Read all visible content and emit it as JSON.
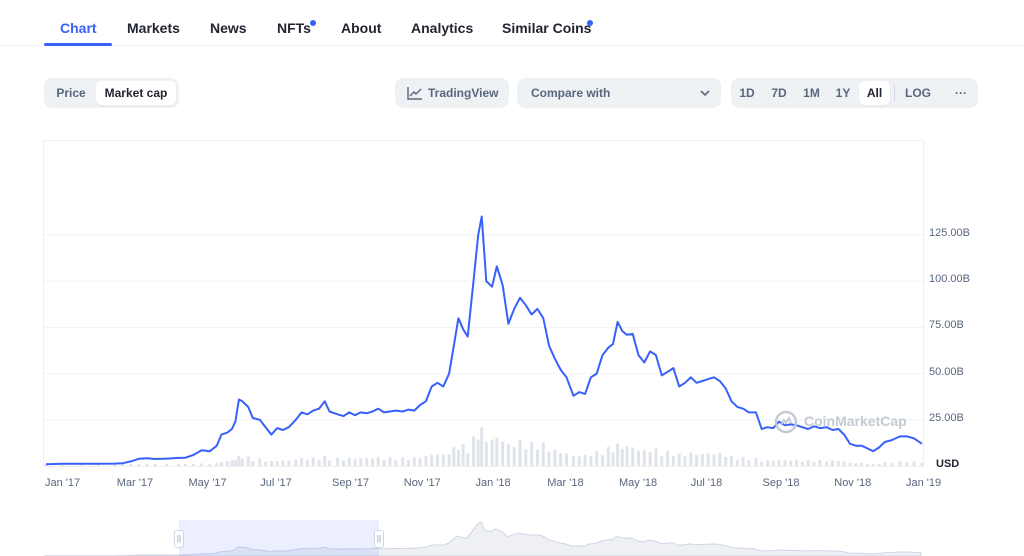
{
  "tabs": [
    {
      "label": "Chart",
      "active": true,
      "dot": false
    },
    {
      "label": "Markets",
      "active": false,
      "dot": false
    },
    {
      "label": "News",
      "active": false,
      "dot": false
    },
    {
      "label": "NFTs",
      "active": false,
      "dot": true
    },
    {
      "label": "About",
      "active": false,
      "dot": false
    },
    {
      "label": "Analytics",
      "active": false,
      "dot": false
    },
    {
      "label": "Similar Coins",
      "active": false,
      "dot": true
    }
  ],
  "controls": {
    "metric_toggle": [
      {
        "label": "Price",
        "selected": false
      },
      {
        "label": "Market cap",
        "selected": true
      }
    ],
    "tradingview_label": "TradingView",
    "compare_label": "Compare with",
    "ranges": [
      {
        "label": "1D",
        "selected": false
      },
      {
        "label": "7D",
        "selected": false
      },
      {
        "label": "1M",
        "selected": false
      },
      {
        "label": "1Y",
        "selected": false
      },
      {
        "label": "All",
        "selected": true
      }
    ],
    "log_label": "LOG",
    "more_label": "···"
  },
  "watermark": "CoinMarketCap",
  "currency": "USD",
  "colors": {
    "accent": "#3861fb",
    "line": "#3861fb",
    "volume": "#dfe3ea"
  },
  "chart_data": {
    "type": "line",
    "y_unit": "USD",
    "ylim": [
      0,
      150000000000
    ],
    "y_ticks": [
      {
        "value": 25000000000,
        "label": "25.00B"
      },
      {
        "value": 50000000000,
        "label": "50.00B"
      },
      {
        "value": 75000000000,
        "label": "75.00B"
      },
      {
        "value": 100000000000,
        "label": "100.00B"
      },
      {
        "value": 125000000000,
        "label": "125.00B"
      }
    ],
    "x_ticks": [
      "Jan '17",
      "Mar '17",
      "May '17",
      "Jul '17",
      "Sep '17",
      "Nov '17",
      "Jan '18",
      "Mar '18",
      "May '18",
      "Jul '18",
      "Sep '18",
      "Nov '18",
      "Jan '19"
    ],
    "x_range": [
      "2017-01-01",
      "2019-01-25"
    ],
    "series": [
      {
        "points": [
          [
            "2017-01-01",
            1.0
          ],
          [
            "2017-01-15",
            1.2
          ],
          [
            "2017-02-01",
            1.2
          ],
          [
            "2017-02-15",
            1.2
          ],
          [
            "2017-03-01",
            1.3
          ],
          [
            "2017-03-08",
            1.5
          ],
          [
            "2017-03-15",
            2.5
          ],
          [
            "2017-03-22",
            3.9
          ],
          [
            "2017-03-29",
            4.2
          ],
          [
            "2017-04-05",
            3.8
          ],
          [
            "2017-04-15",
            4.0
          ],
          [
            "2017-04-25",
            4.4
          ],
          [
            "2017-05-01",
            4.5
          ],
          [
            "2017-05-08",
            6.0
          ],
          [
            "2017-05-15",
            8.5
          ],
          [
            "2017-05-22",
            8.0
          ],
          [
            "2017-05-28",
            11.0
          ],
          [
            "2017-06-01",
            17.0
          ],
          [
            "2017-06-06",
            18.0
          ],
          [
            "2017-06-10",
            20.0
          ],
          [
            "2017-06-13",
            24.0
          ],
          [
            "2017-06-16",
            36.0
          ],
          [
            "2017-06-19",
            35.0
          ],
          [
            "2017-06-24",
            32.0
          ],
          [
            "2017-06-28",
            26.0
          ],
          [
            "2017-07-04",
            25.0
          ],
          [
            "2017-07-09",
            21.0
          ],
          [
            "2017-07-14",
            17.0
          ],
          [
            "2017-07-19",
            20.5
          ],
          [
            "2017-07-24",
            19.5
          ],
          [
            "2017-07-29",
            21.0
          ],
          [
            "2017-08-04",
            25.0
          ],
          [
            "2017-08-09",
            29.0
          ],
          [
            "2017-08-14",
            28.0
          ],
          [
            "2017-08-19",
            30.0
          ],
          [
            "2017-08-24",
            31.0
          ],
          [
            "2017-08-29",
            35.0
          ],
          [
            "2017-09-02",
            29.5
          ],
          [
            "2017-09-09",
            28.0
          ],
          [
            "2017-09-14",
            27.0
          ],
          [
            "2017-09-19",
            29.0
          ],
          [
            "2017-09-24",
            27.5
          ],
          [
            "2017-09-29",
            29.0
          ],
          [
            "2017-10-04",
            28.5
          ],
          [
            "2017-10-09",
            29.5
          ],
          [
            "2017-10-14",
            31.0
          ],
          [
            "2017-10-19",
            29.0
          ],
          [
            "2017-10-24",
            29.5
          ],
          [
            "2017-10-29",
            30.0
          ],
          [
            "2017-11-04",
            29.5
          ],
          [
            "2017-11-09",
            30.5
          ],
          [
            "2017-11-14",
            30.0
          ],
          [
            "2017-11-19",
            33.0
          ],
          [
            "2017-11-24",
            35.0
          ],
          [
            "2017-11-29",
            43.0
          ],
          [
            "2017-12-04",
            45.0
          ],
          [
            "2017-12-09",
            43.0
          ],
          [
            "2017-12-14",
            50.0
          ],
          [
            "2017-12-18",
            65.0
          ],
          [
            "2017-12-22",
            80.0
          ],
          [
            "2017-12-26",
            74.0
          ],
          [
            "2017-12-30",
            70.0
          ],
          [
            "2018-01-04",
            100.0
          ],
          [
            "2018-01-08",
            125.0
          ],
          [
            "2018-01-11",
            135.0
          ],
          [
            "2018-01-15",
            100.0
          ],
          [
            "2018-01-20",
            97.0
          ],
          [
            "2018-01-24",
            108.0
          ],
          [
            "2018-01-29",
            98.0
          ],
          [
            "2018-02-03",
            77.0
          ],
          [
            "2018-02-08",
            85.0
          ],
          [
            "2018-02-13",
            91.0
          ],
          [
            "2018-02-18",
            87.0
          ],
          [
            "2018-02-23",
            82.0
          ],
          [
            "2018-02-28",
            85.0
          ],
          [
            "2018-03-05",
            80.0
          ],
          [
            "2018-03-10",
            65.0
          ],
          [
            "2018-03-15",
            58.0
          ],
          [
            "2018-03-20",
            52.0
          ],
          [
            "2018-03-25",
            48.0
          ],
          [
            "2018-03-31",
            38.0
          ],
          [
            "2018-04-05",
            40.0
          ],
          [
            "2018-04-10",
            39.0
          ],
          [
            "2018-04-15",
            48.0
          ],
          [
            "2018-04-20",
            50.0
          ],
          [
            "2018-04-25",
            60.0
          ],
          [
            "2018-04-30",
            64.0
          ],
          [
            "2018-05-04",
            66.0
          ],
          [
            "2018-05-08",
            78.0
          ],
          [
            "2018-05-12",
            73.0
          ],
          [
            "2018-05-16",
            71.0
          ],
          [
            "2018-05-21",
            71.5
          ],
          [
            "2018-05-26",
            60.0
          ],
          [
            "2018-05-31",
            56.0
          ],
          [
            "2018-06-05",
            62.0
          ],
          [
            "2018-06-10",
            60.0
          ],
          [
            "2018-06-15",
            49.0
          ],
          [
            "2018-06-20",
            51.0
          ],
          [
            "2018-06-25",
            53.0
          ],
          [
            "2018-06-30",
            43.0
          ],
          [
            "2018-07-05",
            45.0
          ],
          [
            "2018-07-10",
            48.0
          ],
          [
            "2018-07-15",
            45.0
          ],
          [
            "2018-07-20",
            46.0
          ],
          [
            "2018-07-25",
            47.0
          ],
          [
            "2018-07-30",
            48.0
          ],
          [
            "2018-08-04",
            46.0
          ],
          [
            "2018-08-09",
            42.0
          ],
          [
            "2018-08-14",
            35.0
          ],
          [
            "2018-08-19",
            32.0
          ],
          [
            "2018-08-24",
            31.0
          ],
          [
            "2018-08-29",
            29.0
          ],
          [
            "2018-09-04",
            29.0
          ],
          [
            "2018-09-09",
            20.0
          ],
          [
            "2018-09-14",
            21.0
          ],
          [
            "2018-09-19",
            20.5
          ],
          [
            "2018-09-24",
            24.0
          ],
          [
            "2018-09-29",
            22.0
          ],
          [
            "2018-10-04",
            22.5
          ],
          [
            "2018-10-09",
            22.0
          ],
          [
            "2018-10-14",
            21.0
          ],
          [
            "2018-10-19",
            20.0
          ],
          [
            "2018-10-24",
            21.5
          ],
          [
            "2018-10-29",
            20.5
          ],
          [
            "2018-11-04",
            21.0
          ],
          [
            "2018-11-09",
            19.5
          ],
          [
            "2018-11-14",
            20.0
          ],
          [
            "2018-11-19",
            17.0
          ],
          [
            "2018-11-24",
            12.0
          ],
          [
            "2018-11-29",
            11.0
          ],
          [
            "2018-12-04",
            11.0
          ],
          [
            "2018-12-09",
            9.5
          ],
          [
            "2018-12-14",
            8.0
          ],
          [
            "2018-12-19",
            10.0
          ],
          [
            "2018-12-24",
            13.0
          ],
          [
            "2018-12-30",
            14.0
          ],
          [
            "2019-01-06",
            16.0
          ],
          [
            "2019-01-12",
            16.0
          ],
          [
            "2019-01-18",
            15.0
          ],
          [
            "2019-01-25",
            12.0
          ]
        ]
      }
    ]
  }
}
